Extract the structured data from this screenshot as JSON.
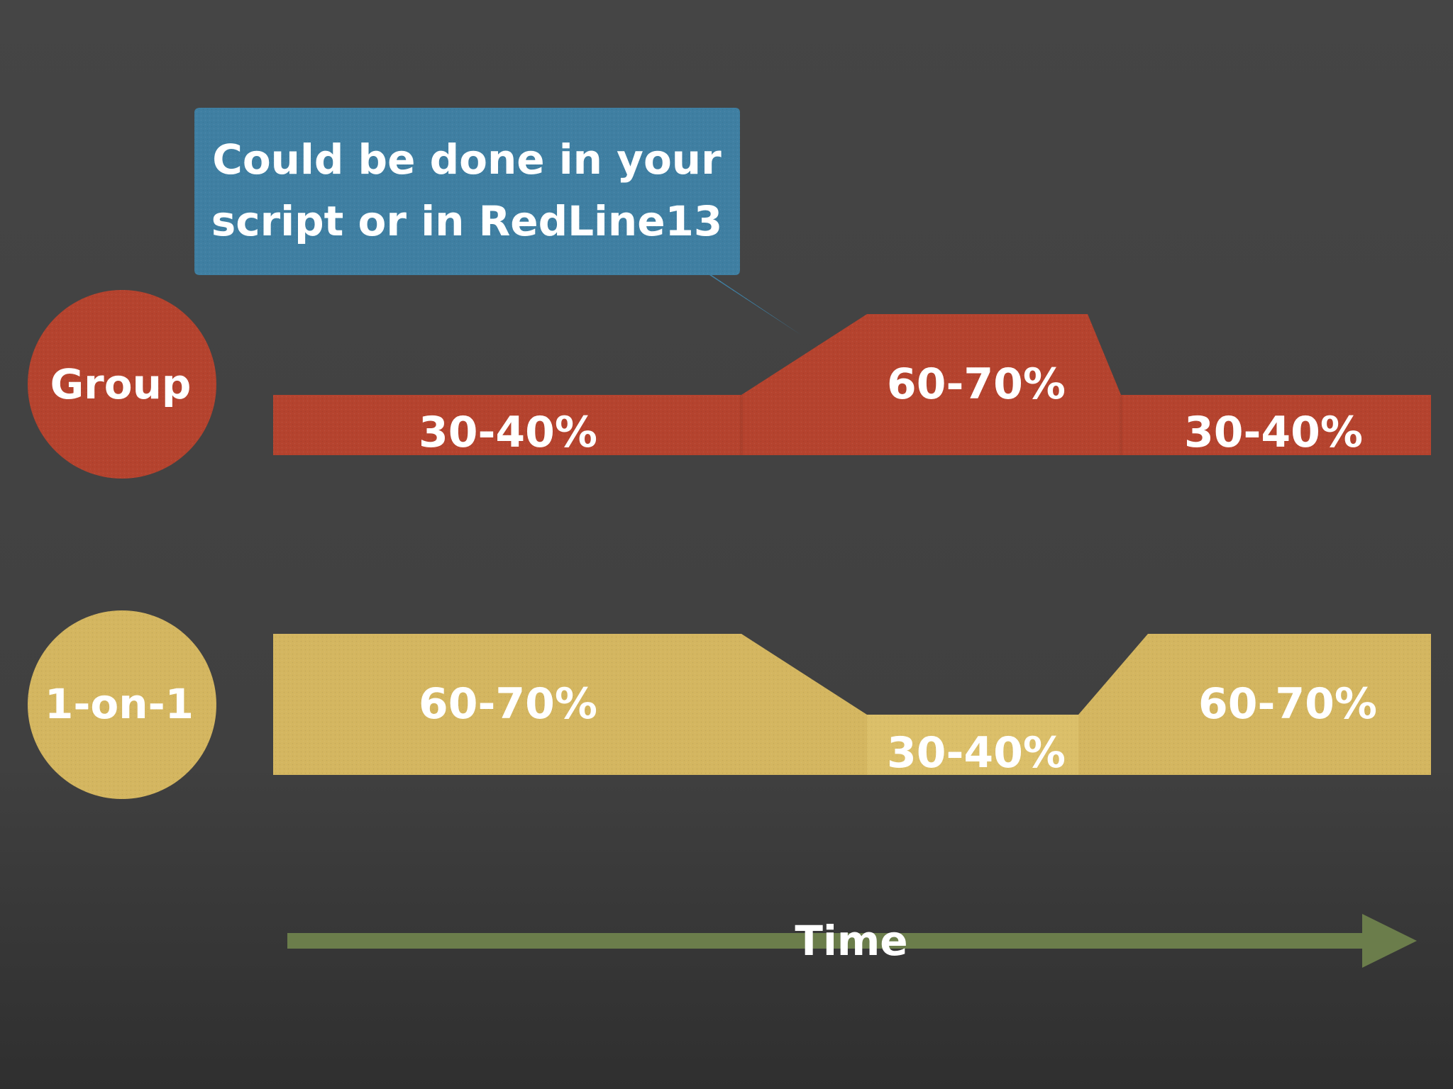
{
  "callout": {
    "line1": "Could be done in your",
    "line2": "script or in RedLine13"
  },
  "rows": [
    {
      "label": "Group",
      "segments": [
        "30-40%",
        "60-70%",
        "30-40%"
      ]
    },
    {
      "label": "1-on-1",
      "segments": [
        "60-70%",
        "30-40%",
        "60-70%"
      ]
    }
  ],
  "axis": {
    "label": "Time"
  },
  "colors": {
    "group": "#b5432e",
    "one_on_one": "#d4b660",
    "callout": "#3f7fa2",
    "arrow": "#6b7d4b",
    "background": "#444444"
  }
}
